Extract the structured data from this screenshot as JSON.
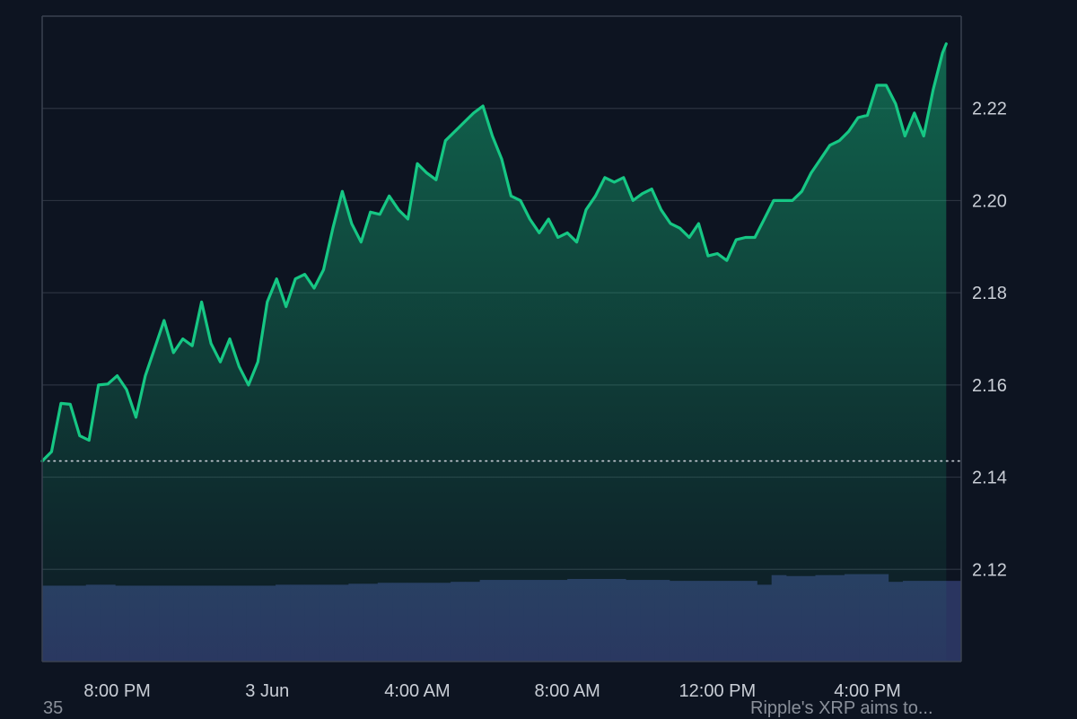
{
  "chart_data": {
    "type": "area",
    "title": "",
    "xlabel": "",
    "ylabel": "",
    "ylim": [
      2.1,
      2.24
    ],
    "y_ticks": [
      2.12,
      2.14,
      2.16,
      2.18,
      2.2,
      2.22
    ],
    "y_tick_labels": [
      "2.12",
      "2.14",
      "2.16",
      "2.18",
      "2.20",
      "2.22"
    ],
    "x_tick_labels": [
      "8:00 PM",
      "3 Jun",
      "4:00 AM",
      "8:00 AM",
      "12:00 PM",
      "4:00 PM"
    ],
    "x_tick_hours": [
      2,
      6,
      10,
      14,
      18,
      22
    ],
    "x_range_hours": [
      0,
      24.5
    ],
    "reference_price": 2.1435,
    "grid": true,
    "legend": "none",
    "colors": {
      "line": "#16c784",
      "volume": "#2a3560",
      "background": "#0d1421",
      "grid": "#2b3240",
      "reference_line": "#c9ced6"
    },
    "series": [
      {
        "values": [
          [
            0.0,
            2.1435
          ],
          [
            0.25,
            2.1455
          ],
          [
            0.5,
            2.156
          ],
          [
            0.75,
            2.1558
          ],
          [
            1.0,
            2.149
          ],
          [
            1.25,
            2.148
          ],
          [
            1.5,
            2.16
          ],
          [
            1.75,
            2.1602
          ],
          [
            2.0,
            2.162
          ],
          [
            2.25,
            2.159
          ],
          [
            2.5,
            2.153
          ],
          [
            2.75,
            2.162
          ],
          [
            3.0,
            2.168
          ],
          [
            3.25,
            2.174
          ],
          [
            3.5,
            2.167
          ],
          [
            3.75,
            2.17
          ],
          [
            4.0,
            2.1685
          ],
          [
            4.25,
            2.178
          ],
          [
            4.5,
            2.169
          ],
          [
            4.75,
            2.165
          ],
          [
            5.0,
            2.17
          ],
          [
            5.25,
            2.164
          ],
          [
            5.5,
            2.16
          ],
          [
            5.75,
            2.165
          ],
          [
            6.0,
            2.178
          ],
          [
            6.25,
            2.183
          ],
          [
            6.5,
            2.177
          ],
          [
            6.75,
            2.183
          ],
          [
            7.0,
            2.184
          ],
          [
            7.25,
            2.181
          ],
          [
            7.5,
            2.185
          ],
          [
            7.75,
            2.194
          ],
          [
            8.0,
            2.202
          ],
          [
            8.25,
            2.195
          ],
          [
            8.5,
            2.191
          ],
          [
            8.75,
            2.1975
          ],
          [
            9.0,
            2.197
          ],
          [
            9.25,
            2.201
          ],
          [
            9.5,
            2.198
          ],
          [
            9.75,
            2.196
          ],
          [
            10.0,
            2.208
          ],
          [
            10.25,
            2.206
          ],
          [
            10.5,
            2.2045
          ],
          [
            10.75,
            2.213
          ],
          [
            11.0,
            2.215
          ],
          [
            11.25,
            2.217
          ],
          [
            11.5,
            2.219
          ],
          [
            11.75,
            2.2205
          ],
          [
            12.0,
            2.214
          ],
          [
            12.25,
            2.209
          ],
          [
            12.5,
            2.201
          ],
          [
            12.75,
            2.2
          ],
          [
            13.0,
            2.196
          ],
          [
            13.25,
            2.193
          ],
          [
            13.5,
            2.196
          ],
          [
            13.75,
            2.192
          ],
          [
            14.0,
            2.193
          ],
          [
            14.25,
            2.191
          ],
          [
            14.5,
            2.198
          ],
          [
            14.75,
            2.201
          ],
          [
            15.0,
            2.205
          ],
          [
            15.25,
            2.204
          ],
          [
            15.5,
            2.205
          ],
          [
            15.75,
            2.2
          ],
          [
            16.0,
            2.2015
          ],
          [
            16.25,
            2.2025
          ],
          [
            16.5,
            2.198
          ],
          [
            16.75,
            2.195
          ],
          [
            17.0,
            2.194
          ],
          [
            17.25,
            2.192
          ],
          [
            17.5,
            2.195
          ],
          [
            17.75,
            2.188
          ],
          [
            18.0,
            2.1885
          ],
          [
            18.25,
            2.187
          ],
          [
            18.5,
            2.1915
          ],
          [
            18.75,
            2.192
          ],
          [
            19.0,
            2.192
          ],
          [
            19.25,
            2.196
          ],
          [
            19.5,
            2.2
          ],
          [
            19.75,
            2.2
          ],
          [
            20.0,
            2.2
          ],
          [
            20.25,
            2.202
          ],
          [
            20.5,
            2.206
          ],
          [
            20.75,
            2.209
          ],
          [
            21.0,
            2.212
          ],
          [
            21.25,
            2.213
          ],
          [
            21.5,
            2.215
          ],
          [
            21.75,
            2.218
          ],
          [
            22.0,
            2.2185
          ],
          [
            22.25,
            2.225
          ],
          [
            22.5,
            2.225
          ],
          [
            22.75,
            2.221
          ],
          [
            23.0,
            2.214
          ],
          [
            23.25,
            2.219
          ],
          [
            23.5,
            2.214
          ],
          [
            23.75,
            2.224
          ],
          [
            24.0,
            2.232
          ],
          [
            24.1,
            2.234
          ]
        ]
      }
    ],
    "volume_series": {
      "values": [
        0.79,
        0.79,
        0.79,
        0.8,
        0.8,
        0.79,
        0.79,
        0.79,
        0.79,
        0.79,
        0.79,
        0.79,
        0.79,
        0.79,
        0.79,
        0.79,
        0.8,
        0.8,
        0.8,
        0.8,
        0.8,
        0.81,
        0.81,
        0.82,
        0.82,
        0.82,
        0.82,
        0.82,
        0.83,
        0.83,
        0.85,
        0.85,
        0.85,
        0.85,
        0.85,
        0.85,
        0.86,
        0.86,
        0.86,
        0.86,
        0.85,
        0.85,
        0.85,
        0.84,
        0.84,
        0.84,
        0.84,
        0.84,
        0.84,
        0.8,
        0.9,
        0.89,
        0.89,
        0.9,
        0.9,
        0.91,
        0.91,
        0.91,
        0.83,
        0.84,
        0.84,
        0.84,
        0.84
      ]
    }
  },
  "footer": {
    "left_text": "35",
    "right_text": "Ripple's XRP aims to..."
  }
}
